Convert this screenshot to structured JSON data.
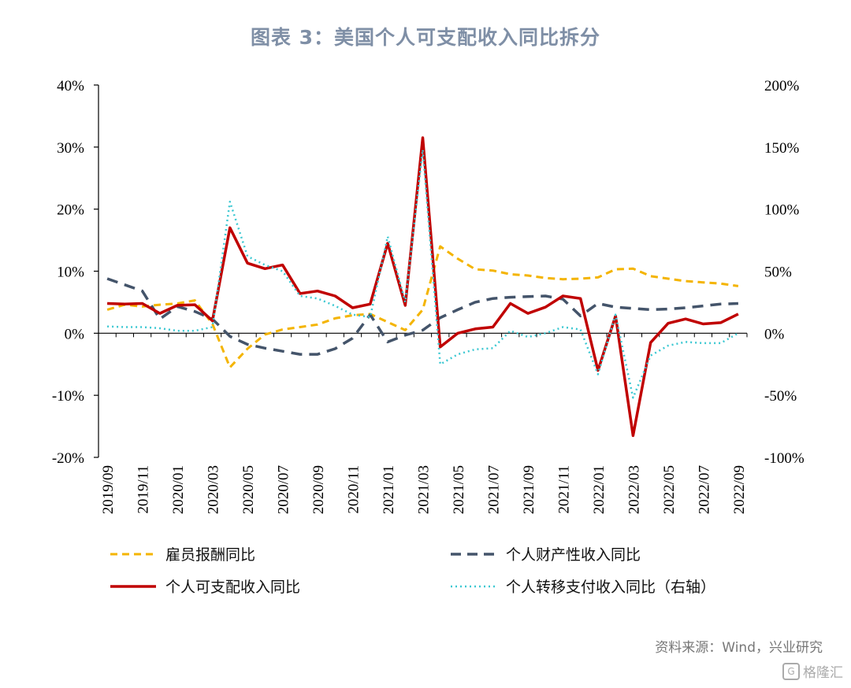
{
  "title": "图表 3：美国个人可支配收入同比拆分",
  "source": "资料来源：Wind，兴业研究",
  "watermark": "格隆汇",
  "colors": {
    "compensation": "#f4b400",
    "property": "#44546a",
    "disposable": "#c00000",
    "transfer": "#3cc8d2"
  },
  "legend": {
    "compensation": "雇员报酬同比",
    "property": "个人财产性收入同比",
    "disposable": "个人可支配收入同比",
    "transfer": "个人转移支付收入同比（右轴）"
  },
  "chart_data": {
    "type": "line",
    "x": [
      "2019/09",
      "2019/10",
      "2019/11",
      "2019/12",
      "2020/01",
      "2020/02",
      "2020/03",
      "2020/04",
      "2020/05",
      "2020/06",
      "2020/07",
      "2020/08",
      "2020/09",
      "2020/10",
      "2020/11",
      "2020/12",
      "2021/01",
      "2021/02",
      "2021/03",
      "2021/04",
      "2021/05",
      "2021/06",
      "2021/07",
      "2021/08",
      "2021/09",
      "2021/10",
      "2021/11",
      "2021/12",
      "2022/01",
      "2022/02",
      "2022/03",
      "2022/04",
      "2022/05",
      "2022/06",
      "2022/07",
      "2022/08",
      "2022/09"
    ],
    "x_tick_labels": [
      "2019/09",
      "2019/11",
      "2020/01",
      "2020/03",
      "2020/05",
      "2020/07",
      "2020/09",
      "2020/11",
      "2021/01",
      "2021/03",
      "2021/05",
      "2021/07",
      "2021/09",
      "2021/11",
      "2022/01",
      "2022/03",
      "2022/05",
      "2022/07",
      "2022/09"
    ],
    "y_left": {
      "ylim": [
        -20,
        40
      ],
      "ticks": [
        "40%",
        "30%",
        "20%",
        "10%",
        "0%",
        "-10%",
        "-20%"
      ]
    },
    "y_right": {
      "ylim": [
        -100,
        200
      ],
      "ticks": [
        "200%",
        "150%",
        "100%",
        "50%",
        "0%",
        "-50%",
        "-100%"
      ]
    },
    "series": [
      {
        "name": "雇员报酬同比",
        "axis": "left",
        "style": "dashed",
        "values": [
          3.8,
          4.6,
          4.3,
          4.6,
          4.8,
          5.3,
          1.5,
          -5.5,
          -2.5,
          -0.2,
          0.6,
          1.0,
          1.4,
          2.4,
          2.9,
          3.1,
          1.8,
          0.5,
          3.8,
          14.0,
          12.0,
          10.3,
          10.1,
          9.5,
          9.3,
          8.9,
          8.7,
          8.8,
          9.0,
          10.3,
          10.4,
          9.2,
          8.8,
          8.4,
          8.2,
          8.0,
          7.6
        ]
      },
      {
        "name": "个人财产性收入同比",
        "axis": "left",
        "style": "dashed",
        "values": [
          8.8,
          7.8,
          6.8,
          2.3,
          4.3,
          3.5,
          2.3,
          -0.5,
          -1.8,
          -2.4,
          -2.9,
          -3.4,
          -3.4,
          -2.5,
          -0.8,
          3.0,
          -1.4,
          -0.3,
          0.5,
          2.5,
          3.8,
          5.0,
          5.6,
          5.8,
          5.9,
          6.0,
          5.5,
          2.8,
          4.8,
          4.2,
          4.0,
          3.8,
          3.9,
          4.1,
          4.4,
          4.7,
          4.8
        ]
      },
      {
        "name": "个人可支配收入同比",
        "axis": "left",
        "style": "solid",
        "values": [
          4.8,
          4.7,
          4.8,
          3.2,
          4.5,
          4.6,
          2.0,
          17.0,
          11.3,
          10.4,
          11.0,
          6.4,
          6.8,
          6.0,
          4.1,
          4.7,
          14.5,
          4.5,
          31.5,
          -2.2,
          0.0,
          0.7,
          1.0,
          4.8,
          3.2,
          4.2,
          6.0,
          5.6,
          -6.0,
          2.8,
          -16.5,
          -1.5,
          1.6,
          2.3,
          1.5,
          1.7,
          3.1
        ]
      },
      {
        "name": "个人转移支付收入同比（右轴）",
        "axis": "right",
        "style": "dotted",
        "values": [
          5.5,
          5.0,
          5.0,
          4.0,
          2.0,
          2.0,
          5.0,
          106.0,
          62.0,
          55.0,
          50.0,
          30.0,
          28.0,
          22.0,
          15.0,
          13.0,
          78.0,
          25.0,
          148.0,
          -25.0,
          -17.0,
          -13.0,
          -12.0,
          2.0,
          -3.0,
          0.0,
          5.0,
          3.0,
          -33.0,
          15.0,
          -52.0,
          -18.0,
          -10.0,
          -7.0,
          -8.0,
          -8.0,
          0.0
        ]
      }
    ]
  }
}
